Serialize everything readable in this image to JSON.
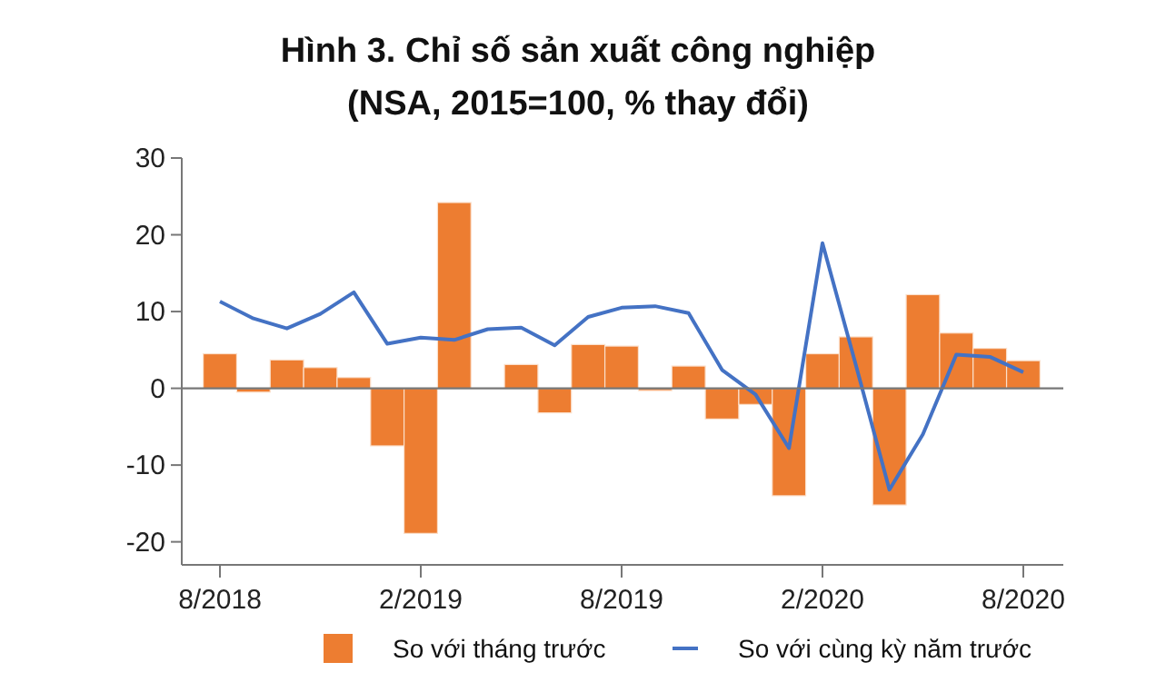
{
  "chart_data": {
    "type": "bar",
    "title": "Hình 3. Chỉ số sản xuất công nghiệp\n(NSA, 2015=100, % thay đổi)",
    "categories": [
      "8/2018",
      null,
      null,
      null,
      null,
      null,
      "2/2019",
      null,
      null,
      null,
      null,
      null,
      "8/2019",
      null,
      null,
      null,
      null,
      null,
      "2/2020",
      null,
      null,
      null,
      null,
      null,
      "8/2020"
    ],
    "series": [
      {
        "name": "So với tháng trước",
        "color": "#ed7d31",
        "values": [
          4.5,
          -0.5,
          3.7,
          2.7,
          1.4,
          -7.5,
          -18.9,
          24.2,
          null,
          3.1,
          -3.2,
          5.7,
          5.5,
          -0.3,
          2.9,
          -4.0,
          -2.1,
          -14.0,
          4.5,
          6.7,
          -15.2,
          12.2,
          7.2,
          5.2,
          3.6
        ]
      },
      {
        "name": "So với cùng kỳ năm trước",
        "type": "line",
        "color": "#4472c4",
        "values": [
          11.3,
          9.1,
          7.8,
          9.7,
          12.5,
          5.8,
          6.6,
          6.3,
          7.7,
          7.9,
          5.6,
          9.3,
          10.5,
          10.7,
          9.8,
          2.4,
          -0.8,
          -7.8,
          18.9,
          3.0,
          -13.2,
          -6.0,
          4.4,
          4.1,
          2.1
        ]
      }
    ],
    "ylim": [
      -23,
      30
    ],
    "yticks": [
      -20,
      -10,
      0,
      10,
      20,
      30
    ],
    "legend": "bottom",
    "marker": "none",
    "line_style": "solid"
  }
}
